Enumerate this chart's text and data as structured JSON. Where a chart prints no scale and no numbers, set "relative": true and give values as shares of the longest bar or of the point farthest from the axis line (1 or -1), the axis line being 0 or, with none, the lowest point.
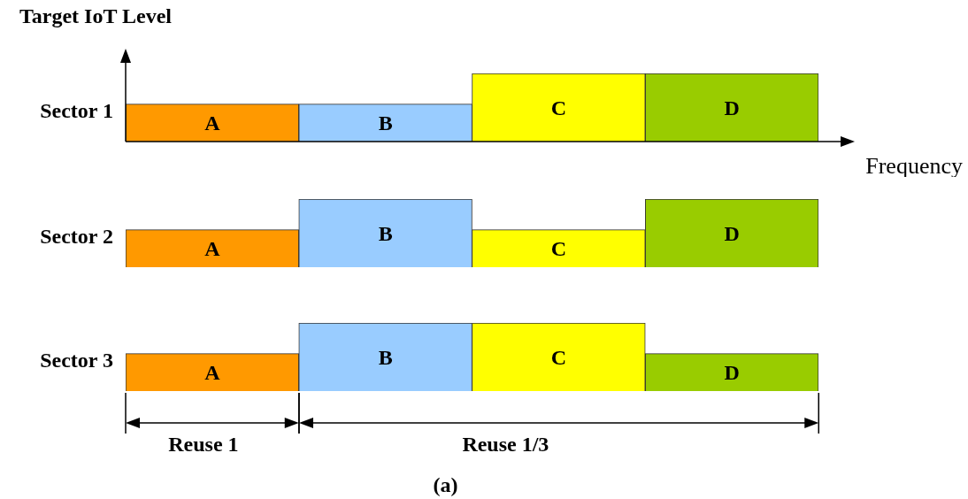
{
  "chart_data": [
    {
      "type": "bar",
      "title": "Target IoT Level",
      "xlabel": "Frequency",
      "ylabel": "Sector 1",
      "relative": true,
      "legend": false,
      "categories": [
        "A",
        "B",
        "C",
        "D"
      ],
      "values": [
        0.55,
        0.55,
        1,
        1
      ],
      "colors": [
        "#ff9900",
        "#99ccff",
        "#ffff00",
        "#99cc00"
      ]
    },
    {
      "type": "bar",
      "ylabel": "Sector 2",
      "relative": true,
      "legend": false,
      "categories": [
        "A",
        "B",
        "C",
        "D"
      ],
      "values": [
        0.55,
        1,
        0.55,
        1
      ],
      "colors": [
        "#ff9900",
        "#99ccff",
        "#ffff00",
        "#99cc00"
      ]
    },
    {
      "type": "bar",
      "ylabel": "Sector 3",
      "relative": true,
      "legend": false,
      "categories": [
        "A",
        "B",
        "C",
        "D"
      ],
      "values": [
        0.55,
        1,
        1,
        0.55
      ],
      "colors": [
        "#ff9900",
        "#99ccff",
        "#ffff00",
        "#99cc00"
      ],
      "annotations": [
        "Reuse 1",
        "Reuse 1/3",
        "(a)"
      ]
    }
  ]
}
